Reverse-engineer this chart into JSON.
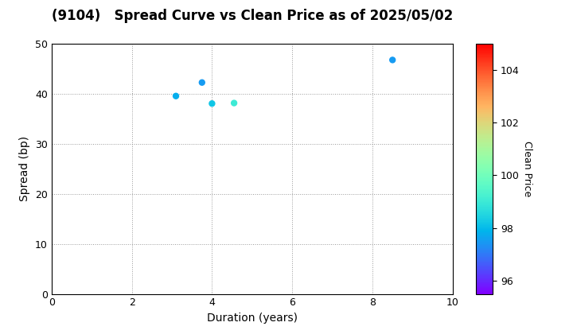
{
  "title": "(9104)   Spread Curve vs Clean Price as of 2025/05/02",
  "xlabel": "Duration (years)",
  "ylabel": "Spread (bp)",
  "colorbar_label": "Clean Price",
  "points": [
    {
      "duration": 3.1,
      "spread": 39.5,
      "clean_price": 97.8
    },
    {
      "duration": 3.75,
      "spread": 42.2,
      "clean_price": 97.5
    },
    {
      "duration": 4.0,
      "spread": 38.0,
      "clean_price": 98.2
    },
    {
      "duration": 4.55,
      "spread": 38.1,
      "clean_price": 99.0
    },
    {
      "duration": 8.5,
      "spread": 46.7,
      "clean_price": 97.5
    }
  ],
  "xlim": [
    0,
    10
  ],
  "ylim": [
    0,
    50
  ],
  "xticks": [
    0,
    2,
    4,
    6,
    8,
    10
  ],
  "yticks": [
    0,
    10,
    20,
    30,
    40,
    50
  ],
  "cmap": "rainbow",
  "clim": [
    95.5,
    105.0
  ],
  "colorbar_ticks": [
    96,
    98,
    100,
    102,
    104
  ],
  "marker_size": 25,
  "background_color": "#ffffff",
  "title_fontsize": 12,
  "label_fontsize": 10,
  "tick_fontsize": 9,
  "cbar_fontsize": 9
}
